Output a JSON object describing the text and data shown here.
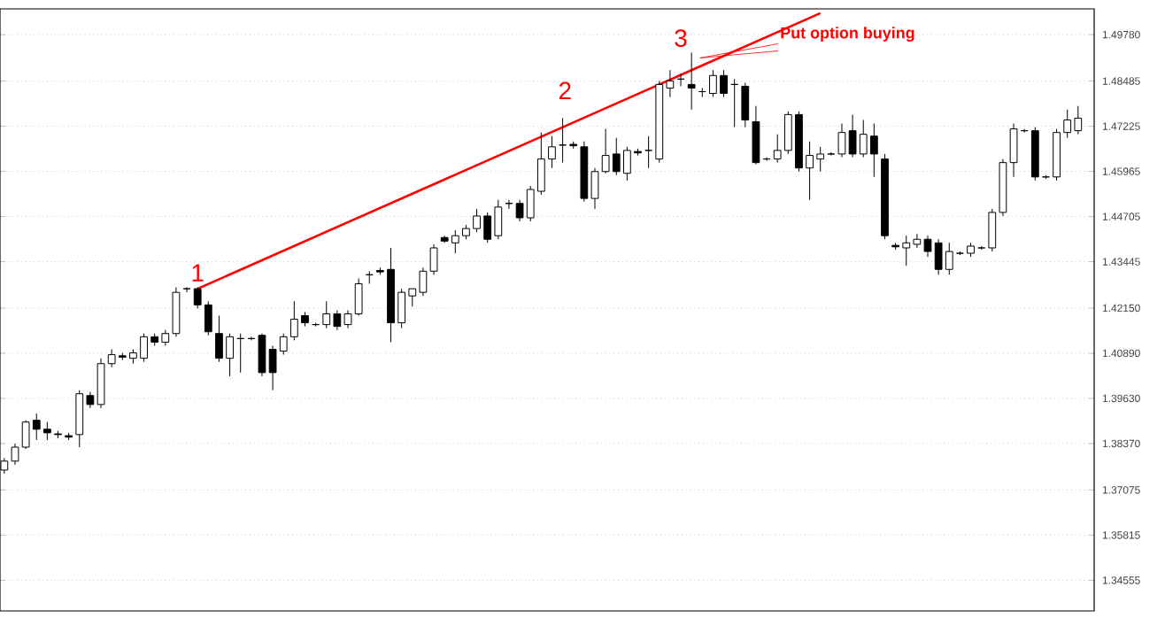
{
  "chart_data": {
    "type": "candlestick",
    "categories": [
      null,
      null,
      null,
      null,
      null,
      null,
      null,
      null,
      null,
      null,
      null,
      null,
      null,
      null,
      null,
      null,
      null,
      null,
      null,
      null,
      null,
      null,
      null,
      null,
      null,
      null,
      null,
      null,
      null,
      null,
      null,
      null,
      null,
      null,
      null,
      null,
      null,
      null,
      null,
      null,
      null,
      null,
      null,
      null,
      null,
      null,
      null,
      null,
      null,
      null,
      null,
      null,
      null,
      null,
      null,
      null,
      null,
      null,
      null,
      null,
      null,
      null,
      null,
      null,
      null,
      null,
      null,
      null,
      null,
      null,
      null,
      null,
      null,
      null,
      null,
      null,
      null,
      null,
      null,
      null,
      null,
      null,
      null,
      null,
      null,
      null,
      null,
      null,
      null,
      null,
      null,
      null,
      null,
      null,
      null,
      null,
      null,
      null,
      null,
      null,
      null
    ],
    "ohlc": [
      [
        1.3763,
        1.3797,
        1.3753,
        1.3788
      ],
      [
        1.3788,
        1.3837,
        1.3778,
        1.3827
      ],
      [
        1.3827,
        1.3902,
        1.3822,
        1.3897
      ],
      [
        1.3902,
        1.3921,
        1.3847,
        1.3877
      ],
      [
        1.3877,
        1.3897,
        1.3847,
        1.3867
      ],
      [
        1.3864,
        1.3872,
        1.3852,
        1.3862
      ],
      [
        1.3859,
        1.3867,
        1.3847,
        1.3855
      ],
      [
        1.3862,
        1.3986,
        1.3827,
        1.3976
      ],
      [
        1.3971,
        1.3981,
        1.3936,
        1.3946
      ],
      [
        1.3946,
        1.4075,
        1.3936,
        1.406
      ],
      [
        1.406,
        1.41,
        1.405,
        1.4085
      ],
      [
        1.4082,
        1.409,
        1.407,
        1.4078
      ],
      [
        1.4075,
        1.41,
        1.406,
        1.409
      ],
      [
        1.4075,
        1.4144,
        1.4065,
        1.4135
      ],
      [
        1.4135,
        1.4144,
        1.411,
        1.412
      ],
      [
        1.412,
        1.4154,
        1.411,
        1.4144
      ],
      [
        1.4144,
        1.4273,
        1.4135,
        1.4259
      ],
      [
        1.4269,
        1.4273,
        1.4259,
        1.4269
      ],
      [
        1.4269,
        1.4273,
        1.4214,
        1.4224
      ],
      [
        1.4224,
        1.4234,
        1.4139,
        1.4149
      ],
      [
        1.4144,
        1.4194,
        1.4065,
        1.4075
      ],
      [
        1.4075,
        1.4144,
        1.4025,
        1.4135
      ],
      [
        1.413,
        1.4144,
        1.4035,
        1.413
      ],
      [
        1.413,
        1.4135,
        1.4125,
        1.413
      ],
      [
        1.4139,
        1.4144,
        1.4025,
        1.4035
      ],
      [
        1.41,
        1.411,
        1.3986,
        1.4035
      ],
      [
        1.4095,
        1.4144,
        1.4085,
        1.4135
      ],
      [
        1.4135,
        1.4234,
        1.4125,
        1.4184
      ],
      [
        1.4194,
        1.4204,
        1.4164,
        1.4174
      ],
      [
        1.4169,
        1.4174,
        1.4164,
        1.4169
      ],
      [
        1.4169,
        1.4234,
        1.4159,
        1.4199
      ],
      [
        1.4199,
        1.4209,
        1.4154,
        1.4164
      ],
      [
        1.4169,
        1.4209,
        1.4159,
        1.4199
      ],
      [
        1.4199,
        1.4298,
        1.4194,
        1.4283
      ],
      [
        1.4308,
        1.4318,
        1.4283,
        1.4308
      ],
      [
        1.432,
        1.4328,
        1.4308,
        1.4316
      ],
      [
        1.4323,
        1.4383,
        1.412,
        1.4174
      ],
      [
        1.4174,
        1.4269,
        1.4159,
        1.4259
      ],
      [
        1.4249,
        1.4269,
        1.4219,
        1.4269
      ],
      [
        1.4259,
        1.4328,
        1.4249,
        1.4318
      ],
      [
        1.4318,
        1.4393,
        1.4308,
        1.4383
      ],
      [
        1.4412,
        1.4417,
        1.4397,
        1.4402
      ],
      [
        1.4397,
        1.4432,
        1.4368,
        1.4417
      ],
      [
        1.4417,
        1.4447,
        1.4407,
        1.4437
      ],
      [
        1.4437,
        1.4492,
        1.4427,
        1.4472
      ],
      [
        1.4472,
        1.4482,
        1.4397,
        1.4407
      ],
      [
        1.4417,
        1.4517,
        1.4407,
        1.4497
      ],
      [
        1.4507,
        1.4517,
        1.4492,
        1.4507
      ],
      [
        1.4507,
        1.4517,
        1.4457,
        1.4467
      ],
      [
        1.4467,
        1.4556,
        1.4457,
        1.4546
      ],
      [
        1.4541,
        1.4705,
        1.4531,
        1.4631
      ],
      [
        1.4631,
        1.4695,
        1.4606,
        1.4665
      ],
      [
        1.467,
        1.4745,
        1.4621,
        1.467
      ],
      [
        1.4672,
        1.468,
        1.466,
        1.4668
      ],
      [
        1.4665,
        1.468,
        1.4512,
        1.4521
      ],
      [
        1.4521,
        1.4606,
        1.4492,
        1.4596
      ],
      [
        1.4596,
        1.4715,
        1.4591,
        1.4641
      ],
      [
        1.4645,
        1.469,
        1.4586,
        1.4596
      ],
      [
        1.4591,
        1.4665,
        1.4571,
        1.4655
      ],
      [
        1.4652,
        1.466,
        1.4641,
        1.4648
      ],
      [
        1.4655,
        1.4695,
        1.4606,
        1.4655
      ],
      [
        1.4631,
        1.4849,
        1.4621,
        1.4839
      ],
      [
        1.4829,
        1.4879,
        1.4804,
        1.4849
      ],
      [
        1.4854,
        1.4869,
        1.4834,
        1.4854
      ],
      [
        1.4839,
        1.4928,
        1.4769,
        1.4829
      ],
      [
        1.4819,
        1.4829,
        1.4804,
        1.4819
      ],
      [
        1.4814,
        1.4879,
        1.4804,
        1.4864
      ],
      [
        1.4864,
        1.4879,
        1.4804,
        1.4814
      ],
      [
        1.4839,
        1.4854,
        1.472,
        1.4839
      ],
      [
        1.4834,
        1.4844,
        1.472,
        1.474
      ],
      [
        1.4735,
        1.4779,
        1.4616,
        1.4621
      ],
      [
        1.4631,
        1.4636,
        1.4626,
        1.4631
      ],
      [
        1.4631,
        1.47,
        1.4621,
        1.4655
      ],
      [
        1.4655,
        1.4764,
        1.4645,
        1.4755
      ],
      [
        1.4755,
        1.4764,
        1.4596,
        1.4606
      ],
      [
        1.4606,
        1.468,
        1.4517,
        1.4641
      ],
      [
        1.4631,
        1.4665,
        1.4596,
        1.4645
      ],
      [
        1.4645,
        1.465,
        1.4641,
        1.4645
      ],
      [
        1.4645,
        1.473,
        1.4636,
        1.4705
      ],
      [
        1.471,
        1.4755,
        1.4636,
        1.4645
      ],
      [
        1.4645,
        1.474,
        1.4636,
        1.47
      ],
      [
        1.4695,
        1.473,
        1.4581,
        1.4645
      ],
      [
        1.4631,
        1.4645,
        1.4407,
        1.4417
      ],
      [
        1.439,
        1.4397,
        1.4378,
        1.4386
      ],
      [
        1.4383,
        1.4417,
        1.4333,
        1.4397
      ],
      [
        1.4393,
        1.4422,
        1.4383,
        1.4407
      ],
      [
        1.4407,
        1.4417,
        1.4358,
        1.4373
      ],
      [
        1.4397,
        1.4407,
        1.4308,
        1.4323
      ],
      [
        1.4323,
        1.4397,
        1.4308,
        1.4373
      ],
      [
        1.4368,
        1.4373,
        1.4363,
        1.4368
      ],
      [
        1.4368,
        1.4397,
        1.4358,
        1.4388
      ],
      [
        1.4383,
        1.4388,
        1.4378,
        1.4383
      ],
      [
        1.4383,
        1.4492,
        1.4373,
        1.4482
      ],
      [
        1.4482,
        1.4631,
        1.4472,
        1.4621
      ],
      [
        1.4621,
        1.473,
        1.4581,
        1.4715
      ],
      [
        1.471,
        1.4715,
        1.4705,
        1.471
      ],
      [
        1.471,
        1.472,
        1.4571,
        1.4581
      ],
      [
        1.4581,
        1.4586,
        1.4576,
        1.4581
      ],
      [
        1.4581,
        1.4715,
        1.4571,
        1.4705
      ],
      [
        1.4705,
        1.4769,
        1.469,
        1.474
      ],
      [
        1.471,
        1.4779,
        1.47,
        1.4745
      ]
    ],
    "series": [
      {
        "type": "line",
        "values": [
          null,
          null,
          null,
          null,
          null,
          null,
          null,
          null,
          null,
          null,
          null,
          null,
          null,
          null,
          null,
          null,
          null,
          null,
          1.4269,
          null,
          null,
          null,
          null,
          null,
          null,
          null,
          null,
          null,
          null,
          null,
          null,
          null,
          null,
          null,
          null,
          null,
          null,
          null,
          null,
          null,
          null,
          null,
          null,
          null,
          null,
          null,
          null,
          null,
          null,
          null,
          null,
          null,
          null,
          null,
          null,
          null,
          null,
          null,
          null,
          null,
          null,
          null,
          null,
          null,
          null,
          null,
          null,
          null,
          null,
          null,
          null,
          null,
          null,
          null,
          null,
          null,
          1.5038,
          null,
          null,
          null,
          null,
          null,
          null,
          null,
          null,
          null,
          null,
          null,
          null,
          null,
          null,
          null,
          null,
          null,
          null,
          null,
          null,
          null,
          null,
          null,
          null
        ],
        "color": "#ff0000"
      }
    ],
    "ylim": [
      1.337,
      1.505
    ],
    "yticks": [
      {
        "value": 1.4978,
        "label": "1.49780"
      },
      {
        "value": 1.48485,
        "label": "1.48485"
      },
      {
        "value": 1.47225,
        "label": "1.47225"
      },
      {
        "value": 1.45965,
        "label": "1.45965"
      },
      {
        "value": 1.44705,
        "label": "1.44705"
      },
      {
        "value": 1.43445,
        "label": "1.43445"
      },
      {
        "value": 1.4215,
        "label": "1.42150"
      },
      {
        "value": 1.4089,
        "label": "1.40890"
      },
      {
        "value": 1.3963,
        "label": "1.39630"
      },
      {
        "value": 1.3837,
        "label": "1.38370"
      },
      {
        "value": 1.37075,
        "label": "1.37075"
      },
      {
        "value": 1.35815,
        "label": "1.35815"
      },
      {
        "value": 1.34555,
        "label": "1.34555"
      }
    ],
    "grid": "y",
    "tick_labels": "y",
    "annotations": [
      "1",
      "2",
      "3",
      "Put option buying"
    ]
  }
}
